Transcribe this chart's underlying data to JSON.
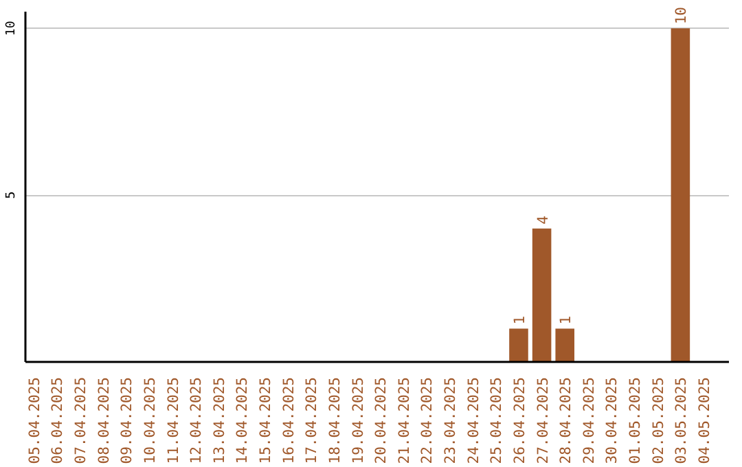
{
  "chart_data": {
    "type": "bar",
    "categories": [
      "05.04.2025",
      "06.04.2025",
      "07.04.2025",
      "08.04.2025",
      "09.04.2025",
      "10.04.2025",
      "11.04.2025",
      "12.04.2025",
      "13.04.2025",
      "14.04.2025",
      "15.04.2025",
      "16.04.2025",
      "17.04.2025",
      "18.04.2025",
      "19.04.2025",
      "20.04.2025",
      "21.04.2025",
      "22.04.2025",
      "23.04.2025",
      "24.04.2025",
      "25.04.2025",
      "26.04.2025",
      "27.04.2025",
      "28.04.2025",
      "29.04.2025",
      "30.04.2025",
      "01.05.2025",
      "02.05.2025",
      "03.05.2025",
      "04.05.2025"
    ],
    "values": [
      0,
      0,
      0,
      0,
      0,
      0,
      0,
      0,
      0,
      0,
      0,
      0,
      0,
      0,
      0,
      0,
      0,
      0,
      0,
      0,
      0,
      1,
      4,
      1,
      0,
      0,
      0,
      0,
      10,
      0
    ],
    "value_labels": [
      null,
      null,
      null,
      null,
      null,
      null,
      null,
      null,
      null,
      null,
      null,
      null,
      null,
      null,
      null,
      null,
      null,
      null,
      null,
      null,
      null,
      "1",
      "4",
      "1",
      null,
      null,
      null,
      null,
      "10",
      null
    ],
    "color": "#a0582a",
    "ylim": [
      0,
      10.5
    ],
    "yticks": [
      5,
      10
    ],
    "grid": "y"
  }
}
